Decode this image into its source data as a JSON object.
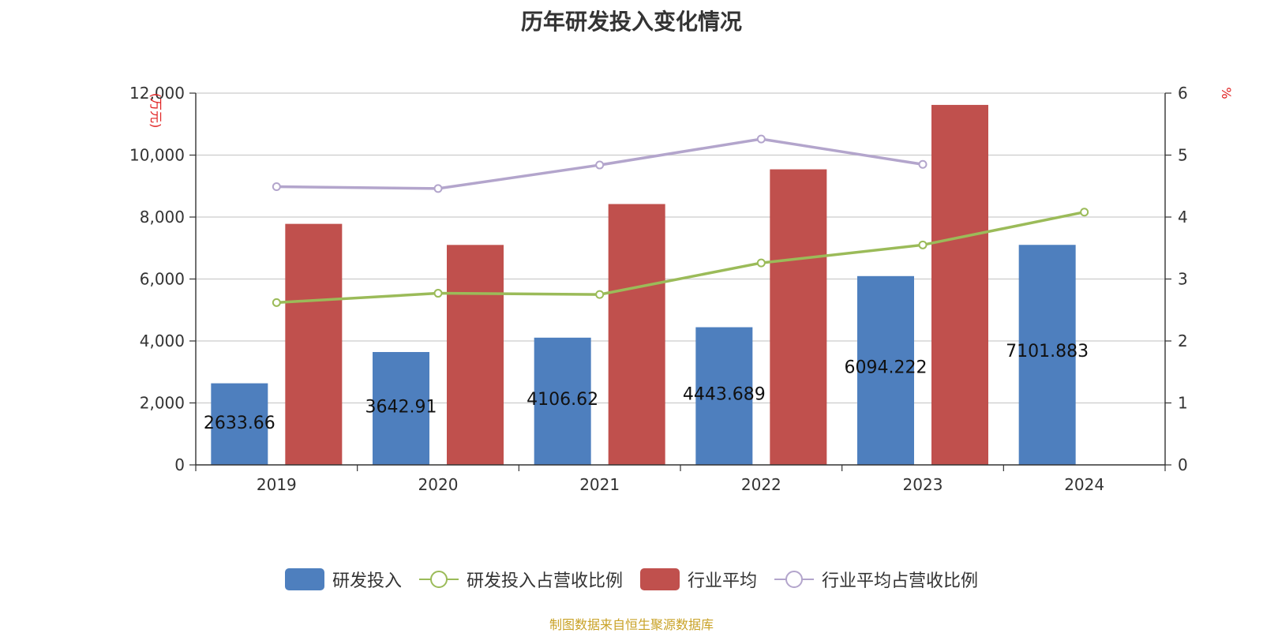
{
  "chart_data": {
    "type": "bar",
    "title": "历年研发投入变化情况",
    "categories": [
      "2019",
      "2020",
      "2021",
      "2022",
      "2023",
      "2024"
    ],
    "y_left": {
      "unit": "(万元)",
      "ticks": [
        "0",
        "2,000",
        "4,000",
        "6,000",
        "8,000",
        "10,000",
        "12,000"
      ],
      "ylim": [
        0,
        12000
      ]
    },
    "y_right": {
      "unit": "%",
      "ticks": [
        "0",
        "1",
        "2",
        "3",
        "4",
        "5",
        "6"
      ],
      "ylim": [
        0,
        6
      ]
    },
    "series": [
      {
        "name": "研发投入",
        "type": "bar",
        "axis": "left",
        "color": "#4e7fbe",
        "values": [
          2633.66,
          3642.91,
          4106.62,
          4443.689,
          6094.222,
          7101.883
        ],
        "labels": [
          "2633.66",
          "3642.91",
          "4106.62",
          "4443.689",
          "6094.222",
          "7101.883"
        ]
      },
      {
        "name": "研发投入占营收比例",
        "type": "line",
        "axis": "right",
        "color": "#9bbb59",
        "values": [
          2.62,
          2.77,
          2.75,
          3.26,
          3.55,
          4.08
        ]
      },
      {
        "name": "行业平均",
        "type": "bar",
        "axis": "left",
        "color": "#c0504d",
        "values": [
          7780,
          7100,
          8420,
          9540,
          11620,
          null
        ]
      },
      {
        "name": "行业平均占营收比例",
        "type": "line",
        "axis": "right",
        "color": "#b3a5cc",
        "values": [
          4.49,
          4.46,
          4.84,
          5.26,
          4.85,
          null
        ]
      }
    ]
  },
  "source": "制图数据来自恒生聚源数据库"
}
